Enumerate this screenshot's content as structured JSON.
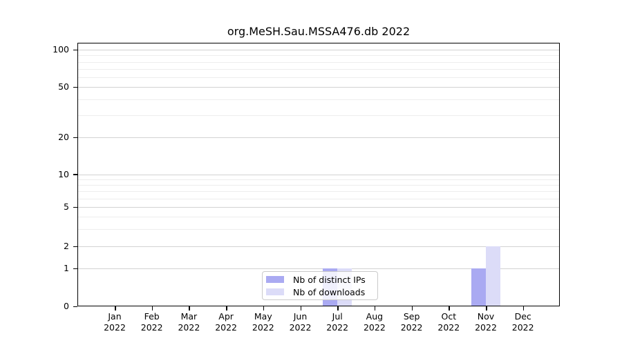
{
  "title": "org.MeSH.Sau.MSSA476.db 2022",
  "y_axis": {
    "tick_labels": [
      "100",
      "50",
      "20",
      "10",
      "5",
      "2",
      "1",
      "0"
    ]
  },
  "x_axis": {
    "months": [
      {
        "month": "Jan",
        "year": "2022"
      },
      {
        "month": "Feb",
        "year": "2022"
      },
      {
        "month": "Mar",
        "year": "2022"
      },
      {
        "month": "Apr",
        "year": "2022"
      },
      {
        "month": "May",
        "year": "2022"
      },
      {
        "month": "Jun",
        "year": "2022"
      },
      {
        "month": "Jul",
        "year": "2022"
      },
      {
        "month": "Aug",
        "year": "2022"
      },
      {
        "month": "Sep",
        "year": "2022"
      },
      {
        "month": "Oct",
        "year": "2022"
      },
      {
        "month": "Nov",
        "year": "2022"
      },
      {
        "month": "Dec",
        "year": "2022"
      }
    ]
  },
  "legend": {
    "items": [
      {
        "label": "Nb of distinct IPs",
        "color": "#aaaaf2"
      },
      {
        "label": "Nb of downloads",
        "color": "#dcdcf8"
      }
    ]
  },
  "chart_data": {
    "type": "bar",
    "title": "org.MeSH.Sau.MSSA476.db 2022",
    "categories": [
      "Jan 2022",
      "Feb 2022",
      "Mar 2022",
      "Apr 2022",
      "May 2022",
      "Jun 2022",
      "Jul 2022",
      "Aug 2022",
      "Sep 2022",
      "Oct 2022",
      "Nov 2022",
      "Dec 2022"
    ],
    "series": [
      {
        "name": "Nb of distinct IPs",
        "color": "#aaaaf2",
        "values": [
          0,
          0,
          0,
          0,
          0,
          0,
          1,
          0,
          0,
          0,
          1,
          0
        ]
      },
      {
        "name": "Nb of downloads",
        "color": "#dcdcf8",
        "values": [
          0,
          0,
          0,
          0,
          0,
          0,
          1,
          0,
          0,
          0,
          2,
          0
        ]
      }
    ],
    "xlabel": "",
    "ylabel": "",
    "yscale": "log-like",
    "yticks": [
      0,
      1,
      2,
      5,
      10,
      20,
      50,
      100
    ],
    "ylim": [
      0,
      112
    ],
    "grid": "horizontal major and minor gridlines",
    "legend_position": "lower center inside plot",
    "colors": {
      "grid_major": "#d2d2d2",
      "grid_minor": "#ededed",
      "axis": "#000000",
      "background": "#ffffff"
    }
  }
}
